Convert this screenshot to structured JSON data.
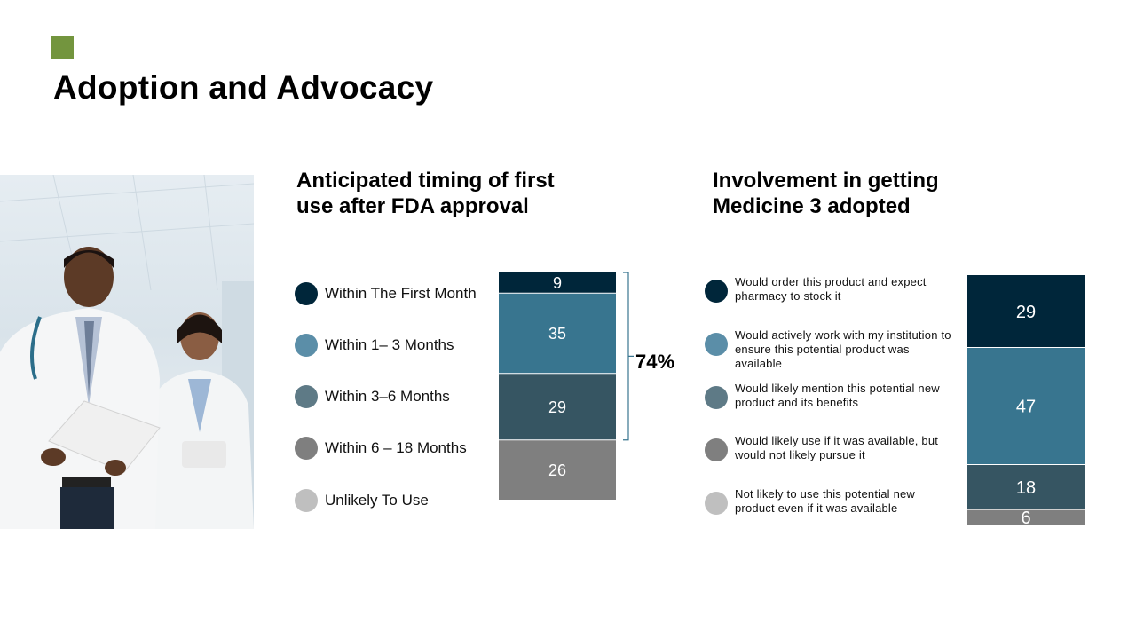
{
  "slide": {
    "title": "Adoption and Advocacy",
    "accent_color": "#73953e"
  },
  "photo": {
    "icon": "doctors-photo"
  },
  "chart_data": [
    {
      "type": "bar",
      "stacked": true,
      "title_lines": [
        "Anticipated timing of first",
        "use after FDA approval"
      ],
      "categories": [
        "Within The First Month",
        "Within 1– 3 Months",
        "Within 3–6 Months",
        "Within 6 – 18 Months",
        "Unlikely To Use"
      ],
      "values": [
        9,
        35,
        29,
        26,
        null
      ],
      "value_labels": [
        "9",
        "35",
        "29",
        "26",
        ""
      ],
      "legend_colors": [
        "#00263a",
        "#5b8ea8",
        "#5e7a86",
        "#7f7f7f",
        "#bfbfbf"
      ],
      "segment_colors": [
        "#00263a",
        "#38758f",
        "#365562",
        "#7f7f7f",
        "#bfbfbf"
      ],
      "bracket_label": "74%",
      "legend_position": "left"
    },
    {
      "type": "bar",
      "stacked": true,
      "title_lines": [
        "Involvement in getting",
        "Medicine 3 adopted"
      ],
      "categories": [
        "Would order this product and expect pharmacy to stock it",
        "Would actively work with my institution to ensure this potential product was available",
        "Would likely mention  this potential new product and its benefits",
        "Would likely use if it was available, but would not likely pursue it",
        "Not likely to use this potential new product even if it was available"
      ],
      "values": [
        29,
        47,
        18,
        6,
        null
      ],
      "value_labels": [
        "29",
        "47",
        "18",
        "6",
        ""
      ],
      "legend_colors": [
        "#00263a",
        "#5b8ea8",
        "#5e7a86",
        "#7f7f7f",
        "#bfbfbf"
      ],
      "segment_colors": [
        "#00263a",
        "#38758f",
        "#365562",
        "#7f7f7f",
        "#bfbfbf"
      ],
      "legend_position": "left"
    }
  ]
}
